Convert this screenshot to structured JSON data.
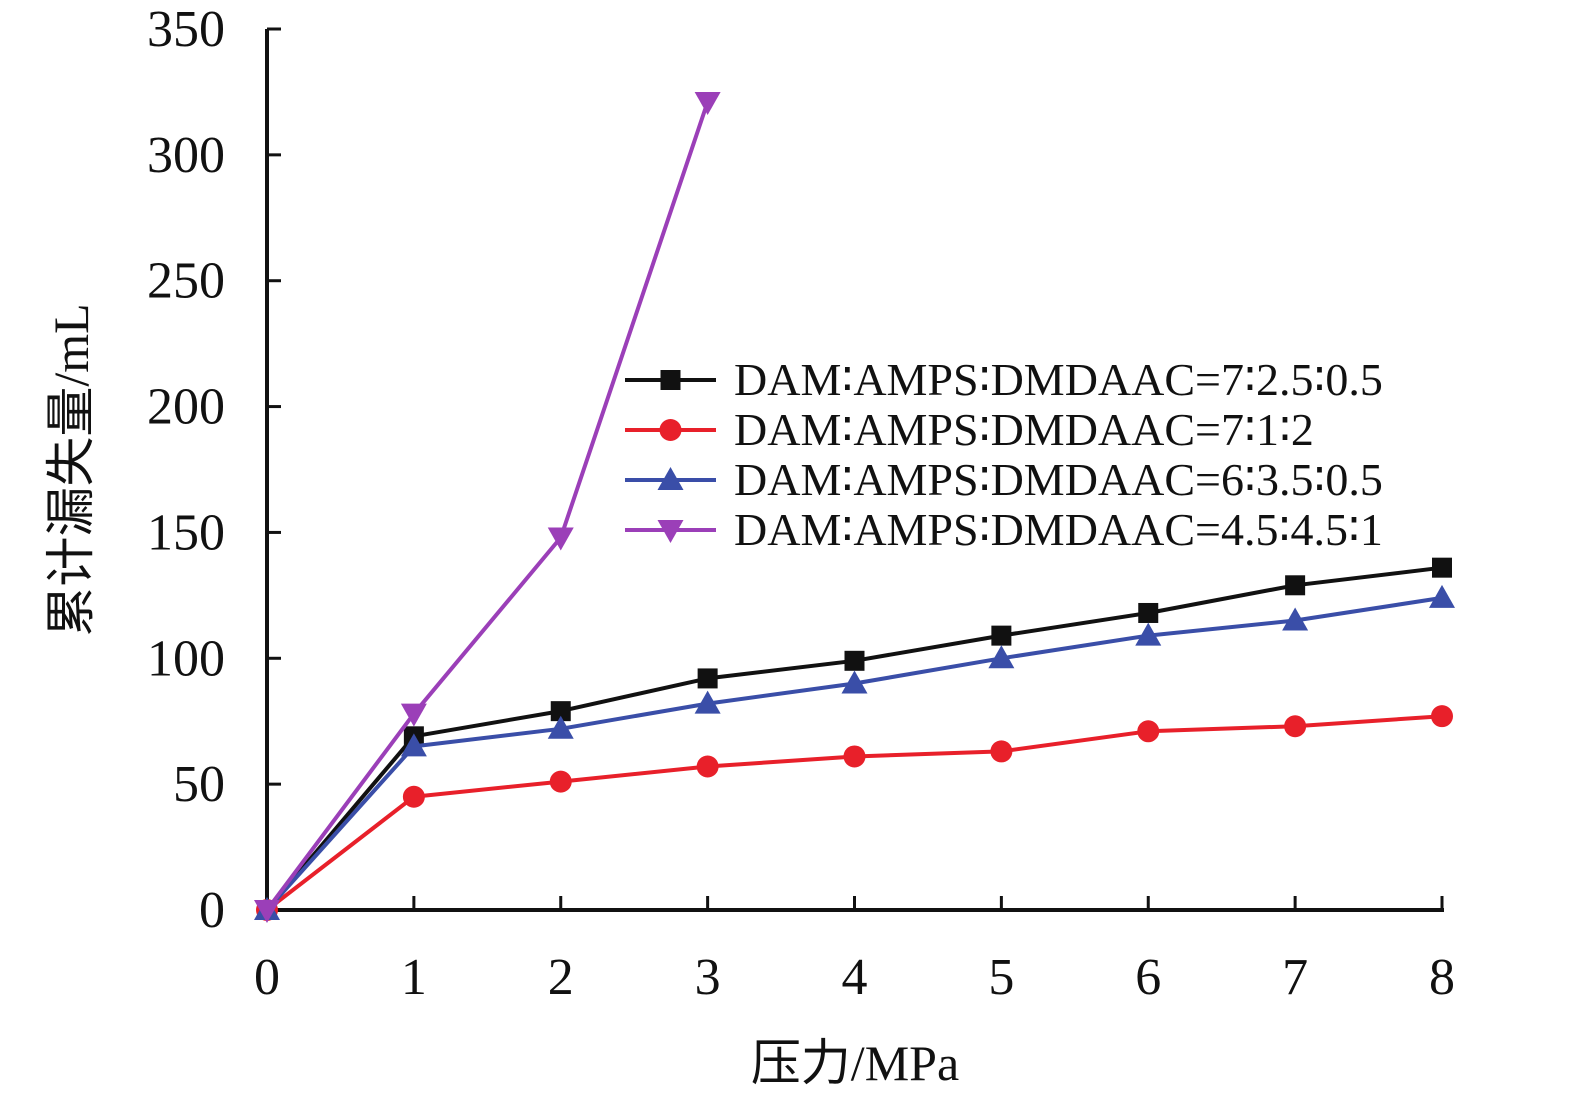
{
  "chart_data": {
    "type": "line",
    "xlabel": "压力/MPa",
    "ylabel": "累计漏失量/mL",
    "xlim": [
      0,
      8
    ],
    "ylim": [
      0,
      350
    ],
    "xticks": [
      "0",
      "1",
      "2",
      "3",
      "4",
      "5",
      "6",
      "7",
      "8"
    ],
    "yticks": [
      "0",
      "50",
      "100",
      "150",
      "200",
      "250",
      "300",
      "350"
    ],
    "grid": false,
    "legend_position": "right",
    "series": [
      {
        "name": "DAM∶AMPS∶DMDAAC=7∶2.5∶0.5",
        "color": "#111111",
        "marker": "square",
        "x": [
          0,
          1,
          2,
          3,
          4,
          5,
          6,
          7,
          8
        ],
        "y": [
          0,
          69,
          79,
          92,
          99,
          109,
          118,
          129,
          136
        ]
      },
      {
        "name": "DAM∶AMPS∶DMDAAC=7∶1∶2",
        "color": "#e8202a",
        "marker": "circle",
        "x": [
          0,
          1,
          2,
          3,
          4,
          5,
          6,
          7,
          8
        ],
        "y": [
          0,
          45,
          51,
          57,
          61,
          63,
          71,
          73,
          77
        ]
      },
      {
        "name": "DAM∶AMPS∶DMDAAC=6∶3.5∶0.5",
        "color": "#3a4ea8",
        "marker": "triangle-up",
        "x": [
          0,
          1,
          2,
          3,
          4,
          5,
          6,
          7,
          8
        ],
        "y": [
          0,
          65,
          72,
          82,
          90,
          100,
          109,
          115,
          124
        ]
      },
      {
        "name": "DAM∶AMPS∶DMDAAC=4.5∶4.5∶1",
        "color": "#9b3fb8",
        "marker": "triangle-down",
        "x": [
          0,
          1,
          2,
          3
        ],
        "y": [
          0,
          78,
          148,
          321
        ]
      }
    ]
  }
}
